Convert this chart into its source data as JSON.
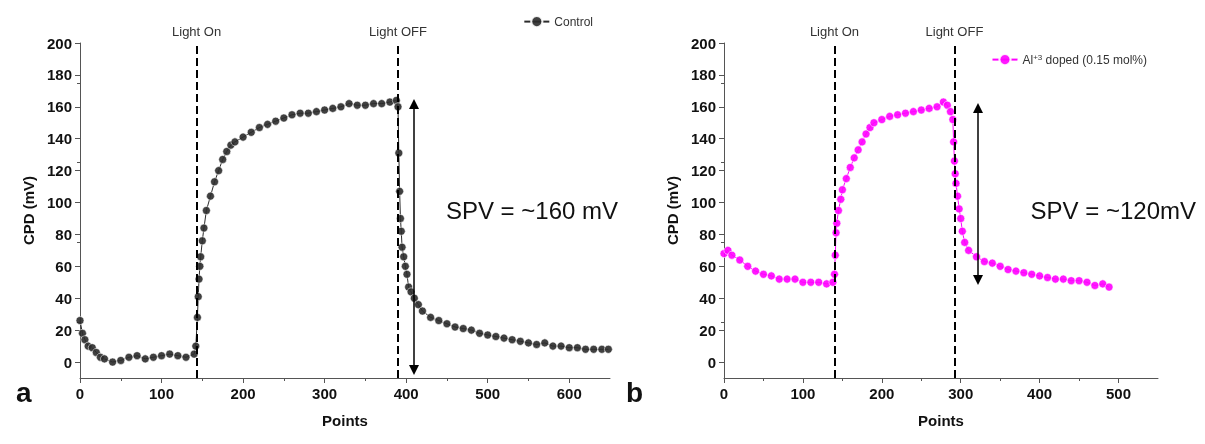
{
  "chart_data": [
    {
      "type": "line",
      "xlabel": "Points",
      "ylabel": "CPD (mV)",
      "xlim": [
        0,
        650
      ],
      "ylim": [
        -10,
        200
      ],
      "xticks": [
        0,
        100,
        200,
        300,
        400,
        500,
        600
      ],
      "yticks": [
        0,
        20,
        40,
        60,
        80,
        100,
        120,
        140,
        160,
        180,
        200
      ],
      "legend": "top right",
      "marker": "circle",
      "grid": false,
      "series": [
        {
          "name": "Control",
          "color": "#2b2b2b",
          "x": [
            0,
            3,
            6,
            10,
            15,
            20,
            25,
            30,
            40,
            50,
            60,
            70,
            80,
            90,
            100,
            110,
            120,
            130,
            140,
            142,
            144,
            145,
            146,
            147,
            148,
            150,
            152,
            155,
            160,
            165,
            170,
            175,
            180,
            185,
            190,
            200,
            210,
            220,
            230,
            240,
            250,
            260,
            270,
            280,
            290,
            300,
            310,
            320,
            330,
            340,
            350,
            360,
            370,
            380,
            388,
            390,
            391,
            392,
            393,
            394,
            395,
            397,
            399,
            401,
            403,
            406,
            410,
            415,
            420,
            430,
            440,
            450,
            460,
            470,
            480,
            490,
            500,
            510,
            520,
            530,
            540,
            550,
            560,
            570,
            580,
            590,
            600,
            610,
            620,
            630,
            640,
            648
          ],
          "values": [
            26,
            18,
            14,
            10,
            9,
            6,
            3,
            2,
            0,
            1,
            3,
            4,
            2,
            3,
            4,
            5,
            4,
            3,
            5,
            10,
            28,
            41,
            52,
            60,
            66,
            76,
            84,
            95,
            104,
            113,
            120,
            127,
            132,
            136,
            138,
            141,
            144,
            147,
            149,
            151,
            153,
            155,
            156,
            156,
            157,
            158,
            159,
            160,
            162,
            161,
            161,
            162,
            162,
            163,
            164,
            160,
            131,
            107,
            90,
            82,
            72,
            66,
            60,
            55,
            47,
            44,
            40,
            36,
            32,
            28,
            26,
            24,
            22,
            21,
            20,
            18,
            17,
            16,
            15,
            14,
            13,
            12,
            11,
            12,
            10,
            10,
            9,
            9,
            8,
            8,
            8,
            8
          ]
        }
      ],
      "ref_lines": [
        {
          "axis": "x",
          "value": 143,
          "label": "Light On",
          "line_style": "dashed",
          "color": "#000000"
        },
        {
          "axis": "x",
          "value": 390,
          "label": "Light OFF",
          "line_style": "dashed",
          "color": "#000000"
        }
      ],
      "annotations": [
        "a",
        "SPV = ~160 mV"
      ]
    },
    {
      "type": "line",
      "xlabel": "Points",
      "ylabel": "CPD (mV)",
      "xlim": [
        0,
        550
      ],
      "ylim": [
        -10,
        200
      ],
      "xticks": [
        0,
        100,
        200,
        300,
        400,
        500
      ],
      "yticks": [
        0,
        20,
        40,
        60,
        80,
        100,
        120,
        140,
        160,
        180,
        200
      ],
      "legend": "top right",
      "marker": "circle",
      "grid": false,
      "series": [
        {
          "name": "Al$^{+3}$ doped (0.15 mol%)",
          "color": "#ff00ff",
          "x": [
            0,
            5,
            10,
            20,
            30,
            40,
            50,
            60,
            70,
            80,
            90,
            100,
            110,
            120,
            130,
            138,
            140,
            141,
            142,
            143,
            145,
            148,
            150,
            155,
            160,
            165,
            170,
            175,
            180,
            185,
            190,
            200,
            210,
            220,
            230,
            240,
            250,
            260,
            270,
            278,
            283,
            287,
            290,
            291,
            292,
            293,
            294,
            296,
            298,
            300,
            302,
            305,
            310,
            320,
            330,
            340,
            350,
            360,
            370,
            380,
            390,
            400,
            410,
            420,
            430,
            440,
            450,
            460,
            470,
            480,
            488
          ],
          "values": [
            68,
            70,
            67,
            64,
            60,
            57,
            55,
            54,
            52,
            52,
            52,
            50,
            50,
            50,
            49,
            50,
            55,
            67,
            81,
            87,
            95,
            102,
            108,
            115,
            122,
            128,
            133,
            138,
            143,
            147,
            150,
            152,
            154,
            155,
            156,
            157,
            158,
            159,
            160,
            163,
            161,
            157,
            152,
            138,
            126,
            118,
            112,
            104,
            96,
            90,
            82,
            75,
            70,
            66,
            63,
            62,
            60,
            58,
            57,
            56,
            55,
            54,
            53,
            52,
            52,
            51,
            51,
            50,
            48,
            49,
            47
          ]
        }
      ],
      "ref_lines": [
        {
          "axis": "x",
          "value": 140,
          "label": "Light On",
          "line_style": "dashed",
          "color": "#000000"
        },
        {
          "axis": "x",
          "value": 292,
          "label": "Light OFF",
          "line_style": "dashed",
          "color": "#000000"
        }
      ],
      "annotations": [
        "b",
        "SPV = ~120mV"
      ]
    }
  ]
}
